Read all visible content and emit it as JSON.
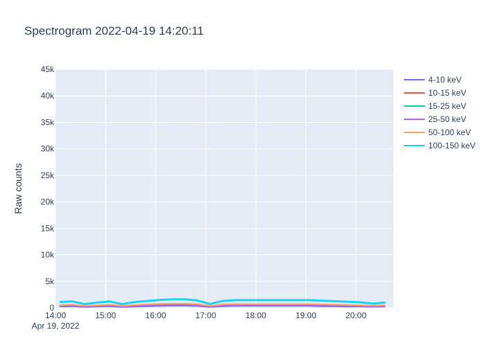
{
  "chart_data": {
    "type": "line",
    "title": "Spectrogram 2022-04-19 14:20:11",
    "xlabel": "",
    "ylabel": "Raw counts",
    "x_range": [
      "2022-04-19 14:00",
      "2022-04-19 20:45"
    ],
    "x_ticks": [
      "14:00",
      "15:00",
      "16:00",
      "17:00",
      "18:00",
      "19:00",
      "20:00"
    ],
    "x_tick_sublabel": "Apr 19, 2022",
    "ylim": [
      0,
      45000
    ],
    "y_ticks": [
      0,
      5000,
      10000,
      15000,
      20000,
      25000,
      30000,
      35000,
      40000,
      45000
    ],
    "y_tick_labels": [
      "0",
      "5k",
      "10k",
      "15k",
      "20k",
      "25k",
      "30k",
      "35k",
      "40k",
      "45k"
    ],
    "grid": true,
    "legend_position": "right",
    "x": [
      "14:05",
      "14:20",
      "14:35",
      "14:50",
      "15:05",
      "15:20",
      "15:35",
      "15:50",
      "16:05",
      "16:20",
      "16:35",
      "16:50",
      "17:05",
      "17:20",
      "17:35",
      "17:50",
      "18:05",
      "18:20",
      "18:35",
      "18:50",
      "19:05",
      "19:20",
      "19:35",
      "19:50",
      "20:05",
      "20:20",
      "20:35"
    ],
    "series": [
      {
        "name": "4-10 keV",
        "color": "#636efa",
        "values": [
          250,
          300,
          150,
          250,
          300,
          150,
          250,
          300,
          350,
          400,
          400,
          350,
          150,
          300,
          350,
          350,
          350,
          350,
          350,
          350,
          350,
          300,
          300,
          250,
          250,
          200,
          250
        ]
      },
      {
        "name": "10-15 keV",
        "color": "#ef553b",
        "values": [
          500,
          550,
          300,
          450,
          550,
          300,
          500,
          600,
          700,
          750,
          750,
          650,
          300,
          600,
          650,
          650,
          650,
          650,
          650,
          650,
          650,
          600,
          550,
          500,
          450,
          350,
          450
        ]
      },
      {
        "name": "15-25 keV",
        "color": "#00cc96",
        "values": [
          400,
          450,
          250,
          350,
          450,
          250,
          400,
          500,
          550,
          600,
          600,
          550,
          250,
          500,
          550,
          550,
          550,
          550,
          550,
          550,
          550,
          500,
          450,
          400,
          350,
          300,
          350
        ]
      },
      {
        "name": "25-50 keV",
        "color": "#ab63fa",
        "values": [
          350,
          400,
          200,
          300,
          400,
          200,
          350,
          450,
          500,
          550,
          550,
          500,
          200,
          450,
          500,
          500,
          500,
          500,
          500,
          500,
          500,
          450,
          400,
          350,
          300,
          250,
          300
        ]
      },
      {
        "name": "50-100 keV",
        "color": "#ffa15a",
        "values": [
          500,
          600,
          350,
          500,
          600,
          350,
          550,
          650,
          750,
          800,
          800,
          700,
          350,
          650,
          700,
          700,
          700,
          700,
          700,
          700,
          700,
          650,
          600,
          550,
          500,
          400,
          500
        ]
      },
      {
        "name": "100-150 keV",
        "color": "#19d3f3",
        "values": [
          1100,
          1200,
          700,
          1000,
          1200,
          700,
          1100,
          1300,
          1500,
          1600,
          1600,
          1400,
          700,
          1300,
          1450,
          1450,
          1450,
          1450,
          1450,
          1450,
          1450,
          1350,
          1250,
          1150,
          1050,
          800,
          1000
        ]
      }
    ]
  }
}
